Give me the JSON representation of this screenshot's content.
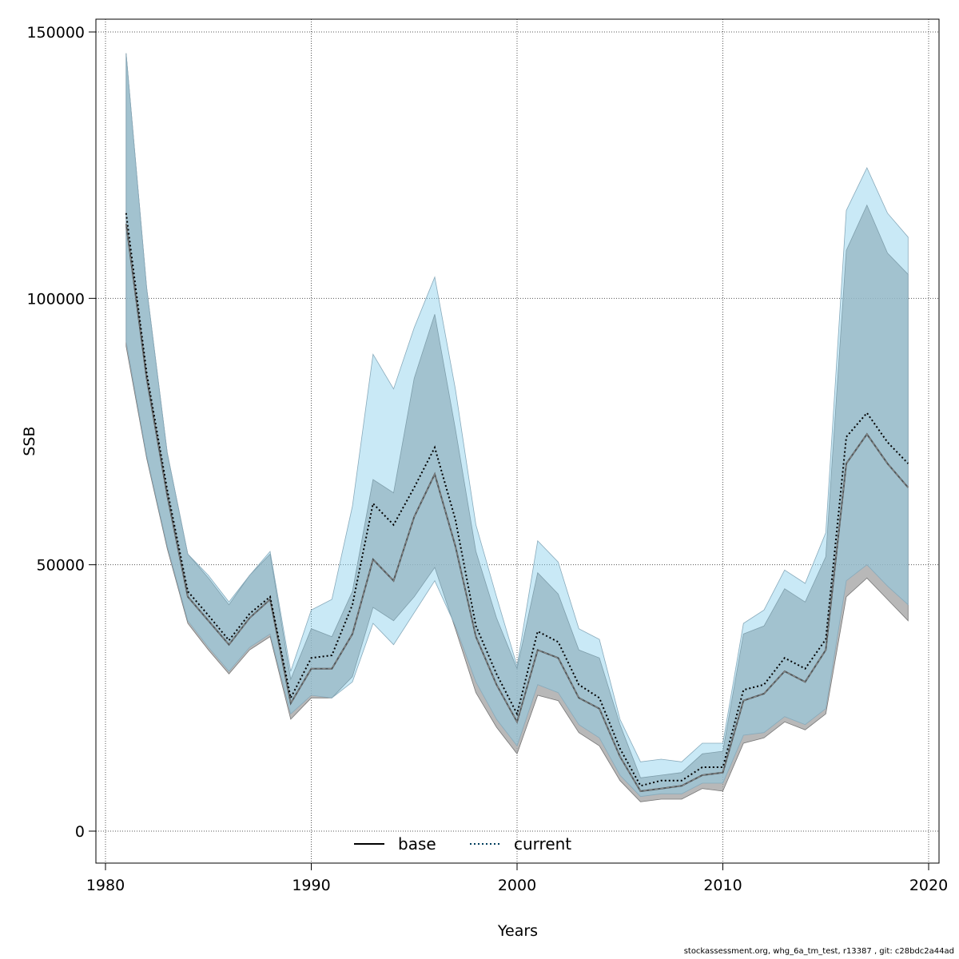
{
  "chart_data": {
    "type": "line",
    "title": "",
    "xlabel": "Years",
    "ylabel": "SSB",
    "xlim": [
      1980,
      2020
    ],
    "ylim": [
      -5000,
      152000
    ],
    "xticks": [
      1980,
      1990,
      2000,
      2010,
      2020
    ],
    "yticks": [
      0,
      50000,
      100000,
      150000
    ],
    "xtick_labels": [
      "1980",
      "1990",
      "2000",
      "2010",
      "2020"
    ],
    "ytick_labels": [
      "0",
      "50000",
      "100000",
      "150000"
    ],
    "grid": true,
    "legend_position": "bottom-center",
    "x": [
      1981,
      1982,
      1983,
      1984,
      1985,
      1986,
      1987,
      1988,
      1989,
      1990,
      1991,
      1992,
      1993,
      1994,
      1995,
      1996,
      1997,
      1998,
      1999,
      2000,
      2001,
      2002,
      2003,
      2004,
      2005,
      2006,
      2007,
      2008,
      2009,
      2010,
      2011,
      2012,
      2013,
      2014,
      2015,
      2016,
      2017,
      2018,
      2019
    ],
    "series": [
      {
        "name": "base",
        "line_style": "solid",
        "line_color": "#000000",
        "band_color": "#a0a0a0",
        "values": [
          114000,
          85000,
          63000,
          44000,
          39500,
          35000,
          40000,
          43500,
          24000,
          30500,
          30500,
          37000,
          51000,
          47000,
          59000,
          67000,
          53500,
          36500,
          27500,
          20500,
          34000,
          32500,
          25000,
          23000,
          14000,
          7500,
          8000,
          8500,
          10500,
          11000,
          24500,
          25800,
          30000,
          28000,
          34000,
          69000,
          74500,
          69000,
          64500
        ],
        "lower": [
          91000,
          70000,
          53000,
          39000,
          34000,
          29500,
          34000,
          36500,
          21000,
          25000,
          25000,
          29000,
          42000,
          39500,
          44000,
          49500,
          38000,
          26000,
          19500,
          14500,
          25500,
          24500,
          18500,
          16000,
          9500,
          5500,
          6000,
          6000,
          8000,
          7500,
          16500,
          17500,
          20500,
          19000,
          22000,
          44000,
          47500,
          43500,
          39500
        ],
        "upper": [
          146000,
          102000,
          71000,
          52000,
          47500,
          42500,
          48000,
          52000,
          28500,
          38000,
          36500,
          45000,
          66000,
          63500,
          85000,
          97000,
          75500,
          52500,
          40000,
          30500,
          48500,
          44500,
          34000,
          32500,
          20000,
          10000,
          10500,
          11000,
          14500,
          15000,
          37000,
          38500,
          45500,
          43000,
          51500,
          109000,
          117500,
          108500,
          104500
        ]
      },
      {
        "name": "current",
        "line_style": "dotted",
        "line_color": "#003d5c",
        "band_color": "#87ceeb",
        "values": [
          116000,
          86000,
          64000,
          45000,
          40500,
          35800,
          40800,
          44000,
          25000,
          32500,
          33000,
          42500,
          61500,
          57500,
          64500,
          72000,
          58500,
          38500,
          29500,
          22000,
          37500,
          35500,
          27500,
          25000,
          15500,
          8500,
          9500,
          9500,
          12000,
          12000,
          26500,
          27500,
          32500,
          30500,
          36000,
          74000,
          78500,
          73000,
          69000
        ],
        "lower": [
          92000,
          70500,
          53500,
          39500,
          34500,
          30000,
          34500,
          37000,
          22000,
          25500,
          25000,
          28000,
          39000,
          35000,
          41000,
          47000,
          38500,
          28000,
          21000,
          16000,
          27500,
          26000,
          20000,
          17500,
          10500,
          6500,
          7000,
          7000,
          9000,
          9000,
          18000,
          18500,
          21500,
          20000,
          23000,
          47000,
          50000,
          46000,
          42500
        ],
        "upper": [
          146000,
          102000,
          71000,
          52000,
          48000,
          43000,
          48000,
          52500,
          30000,
          41500,
          43500,
          61000,
          89500,
          83000,
          94500,
          104000,
          83000,
          57500,
          44000,
          31000,
          54500,
          50500,
          38000,
          36000,
          21000,
          13000,
          13500,
          13000,
          16500,
          16500,
          39000,
          41500,
          49000,
          46500,
          56000,
          116500,
          124500,
          116000,
          111500
        ]
      }
    ]
  },
  "footer_text": "stockassessment.org, whg_6a_tm_test, r13387 , git: c28bdc2a44ad"
}
